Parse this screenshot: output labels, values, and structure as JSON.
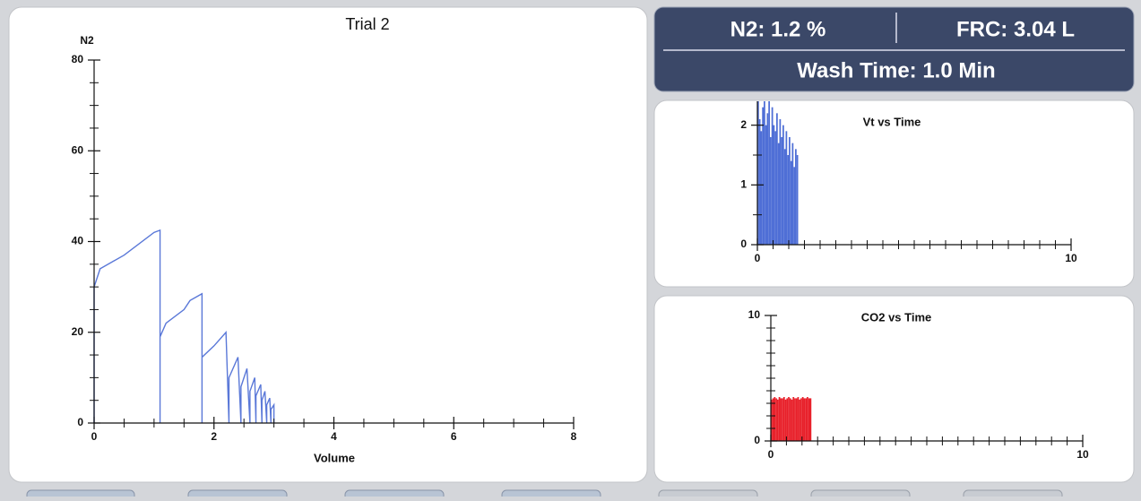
{
  "header": {
    "n2": "N2:  1.2 %",
    "frc": "FRC:  3.04 L",
    "wash_time": "Wash Time: 1.0 Min"
  },
  "chart_data": [
    {
      "type": "line",
      "title": "Trial 2",
      "y_label": "N2",
      "x_label": "Volume",
      "color": "#5a78d8",
      "xlim": [
        0,
        8
      ],
      "xticks": [
        0,
        2,
        4,
        6,
        8
      ],
      "xminorticks": [
        0.5,
        1,
        1.5,
        2.5,
        3,
        3.5,
        4.5,
        5,
        5.5,
        6.5,
        7,
        7.5
      ],
      "ylim": [
        0,
        80
      ],
      "yticks": [
        0,
        20,
        40,
        60,
        80
      ],
      "yminorticks": [
        5,
        10,
        15,
        25,
        30,
        35,
        45,
        50,
        55,
        65,
        70,
        75
      ],
      "series": [
        {
          "x": [
            0,
            0,
            0.1,
            0.5,
            1.0,
            1.1,
            1.1,
            1.1,
            1.2,
            1.5,
            1.6,
            1.8,
            1.8,
            1.8,
            2.0,
            2.2,
            2.25,
            2.25,
            2.4,
            2.45,
            2.45,
            2.55,
            2.6,
            2.6,
            2.68,
            2.7,
            2.7,
            2.78,
            2.8,
            2.8,
            2.85,
            2.88,
            2.88,
            2.93,
            2.95,
            2.95,
            3.0,
            3.0
          ],
          "values": [
            0,
            30,
            34,
            37,
            42,
            42.5,
            0,
            19,
            22,
            25,
            27,
            28.5,
            0,
            14.5,
            17,
            20,
            0,
            10,
            14.5,
            0,
            8,
            12,
            0,
            7,
            10,
            0,
            6,
            8.5,
            0,
            5,
            7,
            0,
            4,
            5.5,
            0,
            3,
            4,
            0
          ]
        }
      ]
    },
    {
      "type": "bar",
      "title": "Vt vs Time",
      "color": "#4f6fd6",
      "xlim": [
        0,
        10
      ],
      "xticks": [
        0,
        10
      ],
      "xminorticks": [
        0.5,
        1,
        1.5,
        2,
        2.5,
        3,
        3.5,
        4,
        4.5,
        5,
        5.5,
        6,
        6.5,
        7,
        7.5,
        8,
        8.5,
        9,
        9.5
      ],
      "ylim": [
        0,
        2.4
      ],
      "yticks": [
        0,
        1,
        2
      ],
      "yminorticks": [
        0.5,
        1.5
      ],
      "x": [
        0.05,
        0.1,
        0.15,
        0.2,
        0.25,
        0.3,
        0.35,
        0.4,
        0.45,
        0.5,
        0.55,
        0.6,
        0.65,
        0.7,
        0.75,
        0.8,
        0.85,
        0.9,
        0.95,
        1.0,
        1.05,
        1.1,
        1.15,
        1.2,
        1.25,
        1.3
      ],
      "values": [
        2.4,
        2.1,
        1.9,
        2.3,
        2.4,
        2.0,
        2.2,
        2.4,
        1.8,
        2.3,
        2.0,
        1.9,
        2.2,
        1.7,
        2.1,
        1.8,
        2.0,
        1.6,
        1.9,
        1.5,
        1.8,
        1.4,
        1.7,
        1.3,
        1.6,
        1.5
      ]
    },
    {
      "type": "bar",
      "title": "CO2 vs Time",
      "color": "#e8202a",
      "xlim": [
        0,
        10
      ],
      "xticks": [
        0,
        10
      ],
      "xminorticks": [
        0.5,
        1,
        1.5,
        2,
        2.5,
        3,
        3.5,
        4,
        4.5,
        5,
        5.5,
        6,
        6.5,
        7,
        7.5,
        8,
        8.5,
        9,
        9.5
      ],
      "ylim": [
        0,
        10
      ],
      "yticks": [
        0,
        10
      ],
      "yminorticks": [
        1,
        2,
        3,
        4,
        5,
        6,
        7,
        8,
        9
      ],
      "x": [
        0.05,
        0.1,
        0.15,
        0.2,
        0.25,
        0.3,
        0.35,
        0.4,
        0.45,
        0.5,
        0.55,
        0.6,
        0.65,
        0.7,
        0.75,
        0.8,
        0.85,
        0.9,
        0.95,
        1.0,
        1.05,
        1.1,
        1.15,
        1.2,
        1.25,
        1.3
      ],
      "values": [
        3.3,
        3.4,
        3.5,
        3.4,
        3.3,
        3.5,
        3.4,
        3.4,
        3.5,
        3.3,
        3.4,
        3.5,
        3.4,
        3.3,
        3.5,
        3.4,
        3.4,
        3.5,
        3.3,
        3.4,
        3.5,
        3.4,
        3.4,
        3.5,
        3.4,
        3.4
      ]
    }
  ]
}
